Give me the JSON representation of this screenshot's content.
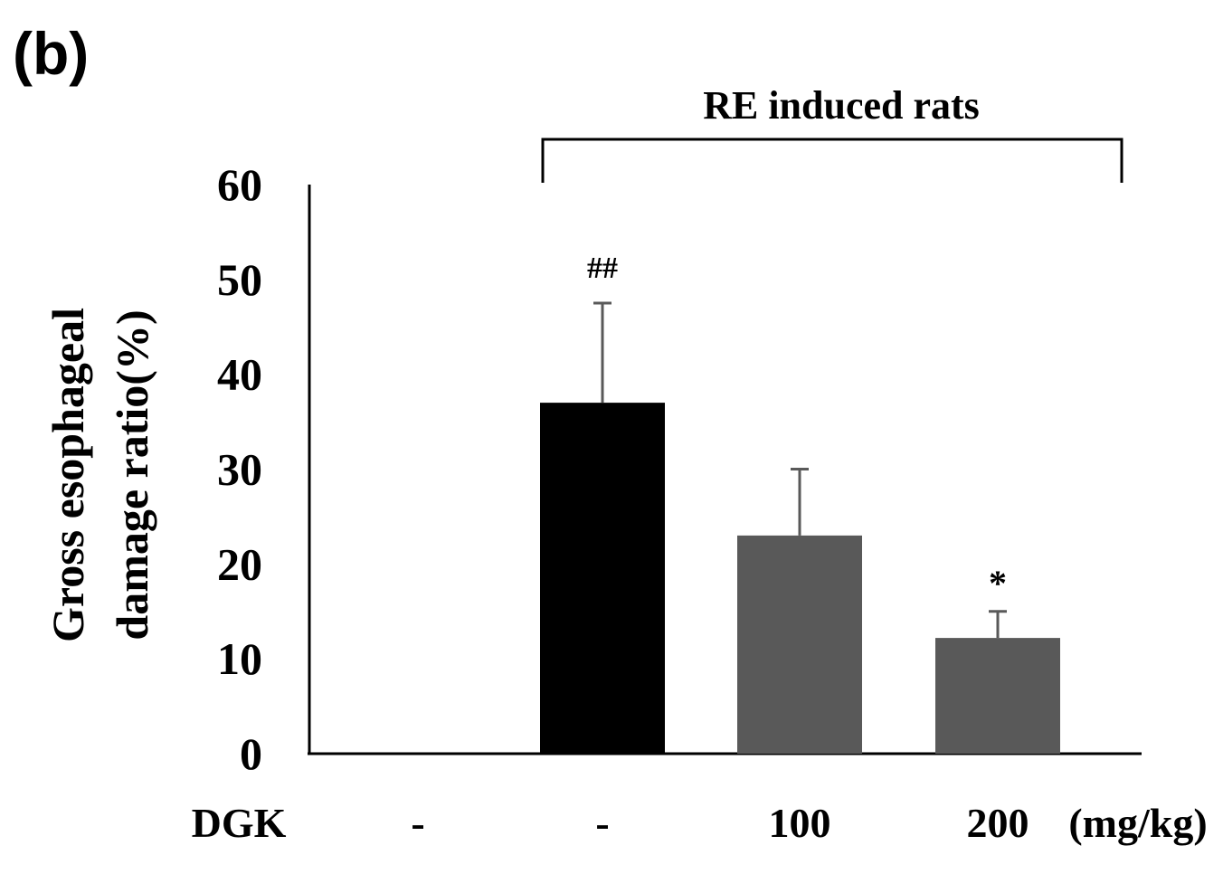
{
  "panel_label": "(b)",
  "chart_data": {
    "type": "bar",
    "title": "",
    "ylabel_line1": "Gross esophageal",
    "ylabel_line2": "damage ratio(%)",
    "xlabel": "",
    "ylim": [
      0,
      60
    ],
    "yticks": [
      "0",
      "10",
      "20",
      "30",
      "40",
      "50",
      "60"
    ],
    "ytick_values": [
      0,
      10,
      20,
      30,
      40,
      50,
      60
    ],
    "row_label": "DGK",
    "unit_label": "(mg/kg)",
    "categories": [
      "-",
      "-",
      "100",
      "200"
    ],
    "values": [
      0,
      37,
      23,
      12.2
    ],
    "errors": [
      0,
      10.5,
      7,
      2.8
    ],
    "annotations": [
      "",
      "##",
      "",
      "*"
    ],
    "bar_colors": [
      "#000000",
      "#000000",
      "#595959",
      "#595959"
    ],
    "bracket": {
      "label": "RE induced rats",
      "from_category": 1,
      "to_category": 3
    }
  }
}
